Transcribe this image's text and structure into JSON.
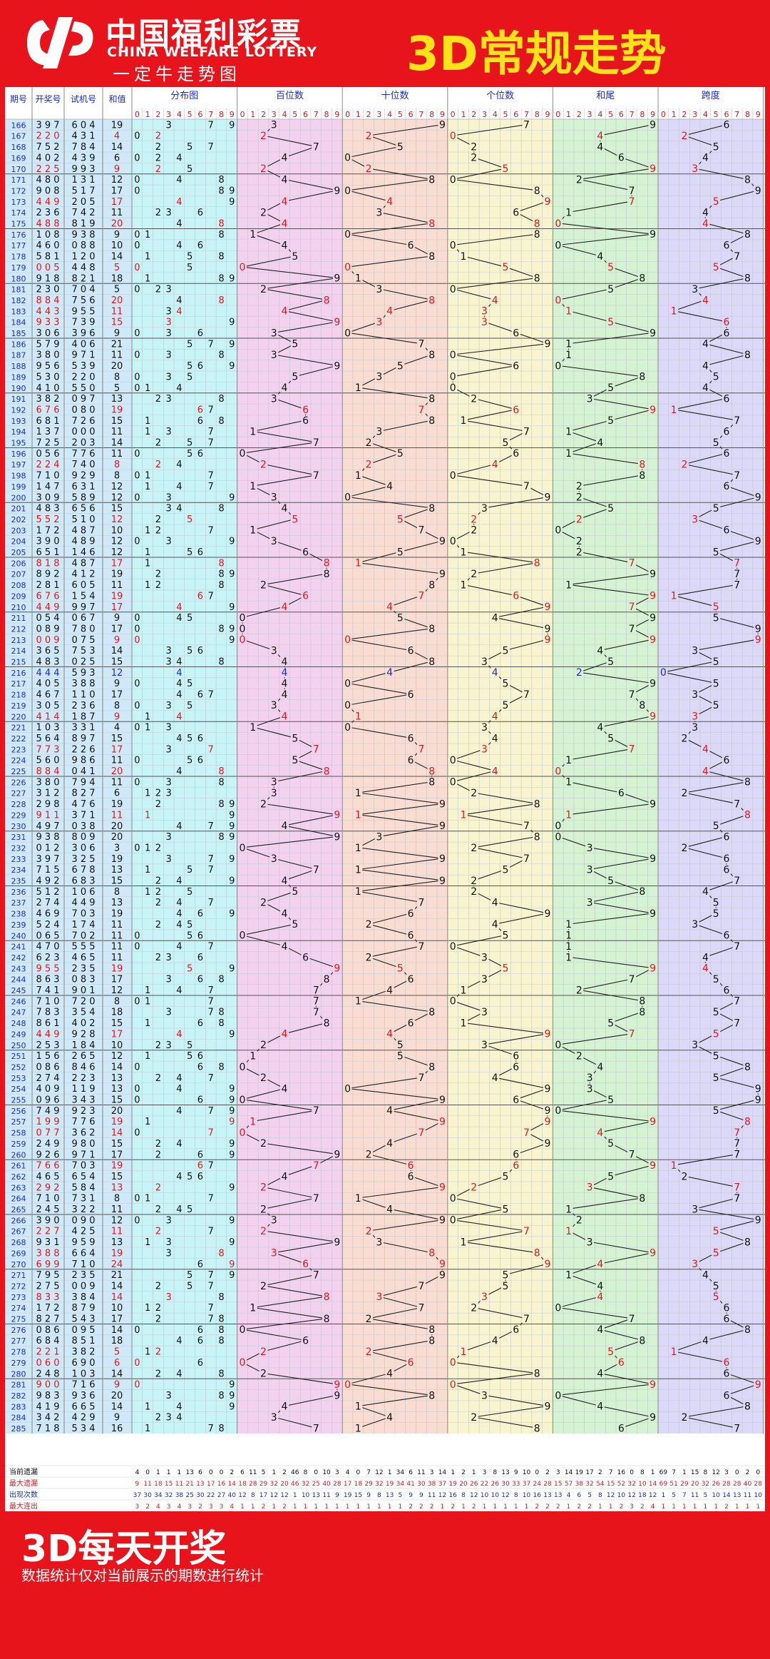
{
  "header": {
    "logo_cn": "中国福利彩票",
    "logo_en": "CHINA WELFARE LOTTERY",
    "slogan": "一定牛走势图",
    "title": "3D常规走势"
  },
  "footer": {
    "title": "3D每天开奖",
    "note": "数据统计仅对当前展示的期数进行统计"
  },
  "colors": {
    "background_red": "#e8141c",
    "title_yellow": "#ffe21a",
    "zone_dist": "#c8f3f7",
    "zone_bai": "#f3d2f0",
    "zone_shi": "#f9ddd2",
    "zone_ge": "#f8f4cf",
    "zone_hewei": "#d5f2d3",
    "zone_kuadu": "#dcd8f7",
    "highlight_red": "#e8141c",
    "highlight_blue": "#1a2bd6"
  },
  "chart_data": {
    "type": "table",
    "columns": {
      "issue": "期号",
      "draw": "开奖号",
      "trial": "试机号",
      "sum": "和值",
      "dist": "分布图",
      "bai": "百位数",
      "shi": "十位数",
      "ge": "个位数",
      "hewei": "和尾",
      "kuadu": "跨度"
    },
    "digits": [
      "0",
      "1",
      "2",
      "3",
      "4",
      "5",
      "6",
      "7",
      "8",
      "9"
    ],
    "rows": [
      [
        "166",
        "397",
        "604",
        "19"
      ],
      [
        "167",
        "220",
        "431",
        "4"
      ],
      [
        "168",
        "752",
        "784",
        "14"
      ],
      [
        "169",
        "402",
        "439",
        "6"
      ],
      [
        "170",
        "225",
        "993",
        "9"
      ],
      [
        "171",
        "480",
        "131",
        "12"
      ],
      [
        "172",
        "908",
        "517",
        "17"
      ],
      [
        "173",
        "449",
        "205",
        "17"
      ],
      [
        "174",
        "236",
        "742",
        "11"
      ],
      [
        "175",
        "488",
        "819",
        "20"
      ],
      [
        "176",
        "108",
        "938",
        "9"
      ],
      [
        "177",
        "460",
        "088",
        "10"
      ],
      [
        "178",
        "581",
        "120",
        "14"
      ],
      [
        "179",
        "005",
        "448",
        "5"
      ],
      [
        "180",
        "918",
        "821",
        "18"
      ],
      [
        "181",
        "230",
        "704",
        "5"
      ],
      [
        "182",
        "884",
        "756",
        "20"
      ],
      [
        "183",
        "443",
        "955",
        "11"
      ],
      [
        "184",
        "933",
        "739",
        "15"
      ],
      [
        "185",
        "306",
        "396",
        "9"
      ],
      [
        "186",
        "579",
        "406",
        "21"
      ],
      [
        "187",
        "380",
        "971",
        "11"
      ],
      [
        "188",
        "956",
        "539",
        "20"
      ],
      [
        "189",
        "530",
        "220",
        "8"
      ],
      [
        "190",
        "410",
        "550",
        "5"
      ],
      [
        "191",
        "382",
        "097",
        "13"
      ],
      [
        "192",
        "676",
        "080",
        "19"
      ],
      [
        "193",
        "681",
        "726",
        "15"
      ],
      [
        "194",
        "137",
        "000",
        "11"
      ],
      [
        "195",
        "725",
        "203",
        "14"
      ],
      [
        "196",
        "056",
        "776",
        "11"
      ],
      [
        "197",
        "224",
        "740",
        "8"
      ],
      [
        "198",
        "710",
        "929",
        "8"
      ],
      [
        "199",
        "147",
        "631",
        "12"
      ],
      [
        "200",
        "309",
        "589",
        "12"
      ],
      [
        "201",
        "483",
        "656",
        "15"
      ],
      [
        "202",
        "552",
        "510",
        "12"
      ],
      [
        "203",
        "172",
        "487",
        "10"
      ],
      [
        "204",
        "390",
        "489",
        "12"
      ],
      [
        "205",
        "651",
        "146",
        "12"
      ],
      [
        "206",
        "818",
        "487",
        "17"
      ],
      [
        "207",
        "892",
        "412",
        "19"
      ],
      [
        "208",
        "281",
        "605",
        "11"
      ],
      [
        "209",
        "676",
        "154",
        "19"
      ],
      [
        "210",
        "449",
        "997",
        "17"
      ],
      [
        "211",
        "054",
        "067",
        "9"
      ],
      [
        "212",
        "089",
        "780",
        "17"
      ],
      [
        "213",
        "009",
        "075",
        "9"
      ],
      [
        "214",
        "365",
        "753",
        "14"
      ],
      [
        "215",
        "483",
        "025",
        "15"
      ],
      [
        "216",
        "444",
        "593",
        "12"
      ],
      [
        "217",
        "405",
        "388",
        "9"
      ],
      [
        "218",
        "467",
        "110",
        "17"
      ],
      [
        "219",
        "305",
        "236",
        "8"
      ],
      [
        "220",
        "414",
        "187",
        "9"
      ],
      [
        "221",
        "103",
        "331",
        "4"
      ],
      [
        "222",
        "564",
        "897",
        "15"
      ],
      [
        "223",
        "773",
        "226",
        "17"
      ],
      [
        "224",
        "560",
        "986",
        "11"
      ],
      [
        "225",
        "884",
        "041",
        "20"
      ],
      [
        "226",
        "380",
        "794",
        "11"
      ],
      [
        "227",
        "312",
        "827",
        "6"
      ],
      [
        "228",
        "298",
        "476",
        "19"
      ],
      [
        "229",
        "911",
        "371",
        "11"
      ],
      [
        "230",
        "497",
        "038",
        "20"
      ],
      [
        "231",
        "938",
        "809",
        "20"
      ],
      [
        "232",
        "012",
        "306",
        "3"
      ],
      [
        "233",
        "397",
        "325",
        "19"
      ],
      [
        "234",
        "715",
        "678",
        "13"
      ],
      [
        "235",
        "492",
        "683",
        "15"
      ],
      [
        "236",
        "512",
        "106",
        "8"
      ],
      [
        "237",
        "274",
        "449",
        "13"
      ],
      [
        "238",
        "469",
        "703",
        "19"
      ],
      [
        "239",
        "524",
        "174",
        "11"
      ],
      [
        "240",
        "065",
        "702",
        "11"
      ],
      [
        "241",
        "470",
        "555",
        "11"
      ],
      [
        "242",
        "623",
        "465",
        "11"
      ],
      [
        "243",
        "955",
        "235",
        "19"
      ],
      [
        "244",
        "863",
        "083",
        "17"
      ],
      [
        "245",
        "741",
        "901",
        "12"
      ],
      [
        "246",
        "710",
        "720",
        "8"
      ],
      [
        "247",
        "783",
        "354",
        "18"
      ],
      [
        "248",
        "861",
        "402",
        "15"
      ],
      [
        "249",
        "449",
        "928",
        "17"
      ],
      [
        "250",
        "253",
        "184",
        "10"
      ],
      [
        "251",
        "156",
        "265",
        "12"
      ],
      [
        "252",
        "086",
        "846",
        "14"
      ],
      [
        "253",
        "274",
        "223",
        "13"
      ],
      [
        "254",
        "409",
        "119",
        "13"
      ],
      [
        "255",
        "096",
        "343",
        "15"
      ],
      [
        "256",
        "749",
        "923",
        "20"
      ],
      [
        "257",
        "199",
        "776",
        "19"
      ],
      [
        "258",
        "077",
        "362",
        "14"
      ],
      [
        "259",
        "249",
        "980",
        "15"
      ],
      [
        "260",
        "926",
        "971",
        "17"
      ],
      [
        "261",
        "766",
        "703",
        "19"
      ],
      [
        "262",
        "465",
        "654",
        "15"
      ],
      [
        "263",
        "292",
        "584",
        "13"
      ],
      [
        "264",
        "710",
        "731",
        "8"
      ],
      [
        "265",
        "245",
        "322",
        "11"
      ],
      [
        "266",
        "390",
        "090",
        "12"
      ],
      [
        "267",
        "227",
        "425",
        "11"
      ],
      [
        "268",
        "931",
        "959",
        "13"
      ],
      [
        "269",
        "388",
        "664",
        "19"
      ],
      [
        "270",
        "699",
        "710",
        "24"
      ],
      [
        "271",
        "795",
        "235",
        "21"
      ],
      [
        "272",
        "275",
        "009",
        "14"
      ],
      [
        "273",
        "833",
        "384",
        "14"
      ],
      [
        "274",
        "172",
        "879",
        "10"
      ],
      [
        "275",
        "827",
        "543",
        "17"
      ],
      [
        "276",
        "086",
        "095",
        "14"
      ],
      [
        "277",
        "684",
        "851",
        "18"
      ],
      [
        "278",
        "221",
        "382",
        "5"
      ],
      [
        "279",
        "060",
        "690",
        "6"
      ],
      [
        "280",
        "248",
        "103",
        "14"
      ],
      [
        "281",
        "900",
        "716",
        "9"
      ],
      [
        "282",
        "983",
        "936",
        "20"
      ],
      [
        "283",
        "419",
        "665",
        "14"
      ],
      [
        "284",
        "342",
        "429",
        "9"
      ],
      [
        "285",
        "718",
        "534",
        "16"
      ]
    ],
    "stats_labels": [
      "当前遗漏",
      "最大遗漏",
      "出现次数",
      "最大连出"
    ],
    "stats_zones": {
      "dist": [
        [
          "4",
          "0",
          "1",
          "1",
          "1",
          "13",
          "6",
          "0",
          "0",
          "2"
        ],
        [
          "9",
          "11",
          "18",
          "15",
          "11",
          "21",
          "13",
          "17",
          "16",
          "14"
        ],
        [
          "37",
          "30",
          "34",
          "32",
          "38",
          "25",
          "30",
          "22",
          "27",
          "40"
        ],
        [
          "3",
          "2",
          "4",
          "3",
          "4",
          "3",
          "2",
          "3",
          "3",
          "4"
        ]
      ],
      "bai": [
        [
          "6",
          "11",
          "5",
          "1",
          "2",
          "46",
          "8",
          "0",
          "10",
          "3"
        ],
        [
          "18",
          "28",
          "29",
          "32",
          "20",
          "46",
          "32",
          "25",
          "40",
          "28"
        ],
        [
          "12",
          "8",
          "17",
          "12",
          "12",
          "1",
          "10",
          "13",
          "11",
          "9"
        ],
        [
          "1",
          "1",
          "2",
          "1",
          "2",
          "1",
          "1",
          "1",
          "1",
          "1"
        ]
      ],
      "shi": [
        [
          "4",
          "0",
          "7",
          "12",
          "1",
          "34",
          "6",
          "11",
          "3",
          "14"
        ],
        [
          "17",
          "18",
          "29",
          "32",
          "19",
          "34",
          "41",
          "30",
          "38",
          "37"
        ],
        [
          "19",
          "15",
          "9",
          "8",
          "13",
          "5",
          "9",
          "9",
          "11",
          "12"
        ],
        [
          "1",
          "1",
          "1",
          "1",
          "1",
          "1",
          "2",
          "2",
          "2",
          "1"
        ]
      ],
      "ge": [
        [
          "1",
          "2",
          "1",
          "3",
          "8",
          "13",
          "9",
          "10",
          "0",
          "2"
        ],
        [
          "19",
          "20",
          "26",
          "22",
          "26",
          "30",
          "33",
          "37",
          "24",
          "28"
        ],
        [
          "16",
          "8",
          "12",
          "10",
          "10",
          "12",
          "8",
          "10",
          "16",
          "13"
        ],
        [
          "2",
          "1",
          "2",
          "1",
          "1",
          "1",
          "1",
          "1",
          "2",
          "2"
        ]
      ],
      "hewei": [
        [
          "3",
          "14",
          "19",
          "17",
          "2",
          "7",
          "16",
          "0",
          "8",
          "1"
        ],
        [
          "15",
          "57",
          "38",
          "32",
          "54",
          "15",
          "52",
          "32",
          "10",
          "14"
        ],
        [
          "13",
          "4",
          "6",
          "5",
          "8",
          "12",
          "10",
          "12",
          "18",
          "12"
        ],
        [
          "2",
          "1",
          "2",
          "2",
          "1",
          "1",
          "2",
          "3",
          "2",
          "4"
        ]
      ],
      "kuadu": [
        [
          "69",
          "7",
          "1",
          "15",
          "8",
          "12",
          "3",
          "0",
          "2",
          "0"
        ],
        [
          "69",
          "51",
          "29",
          "20",
          "32",
          "26",
          "28",
          "28",
          "40",
          "28"
        ],
        [
          "1",
          "5",
          "7",
          "11",
          "5",
          "10",
          "14",
          "13",
          "11",
          "10"
        ],
        [
          "1",
          "1",
          "1",
          "1",
          "1",
          "1",
          "2",
          "1",
          "1",
          "1"
        ]
      ]
    }
  }
}
